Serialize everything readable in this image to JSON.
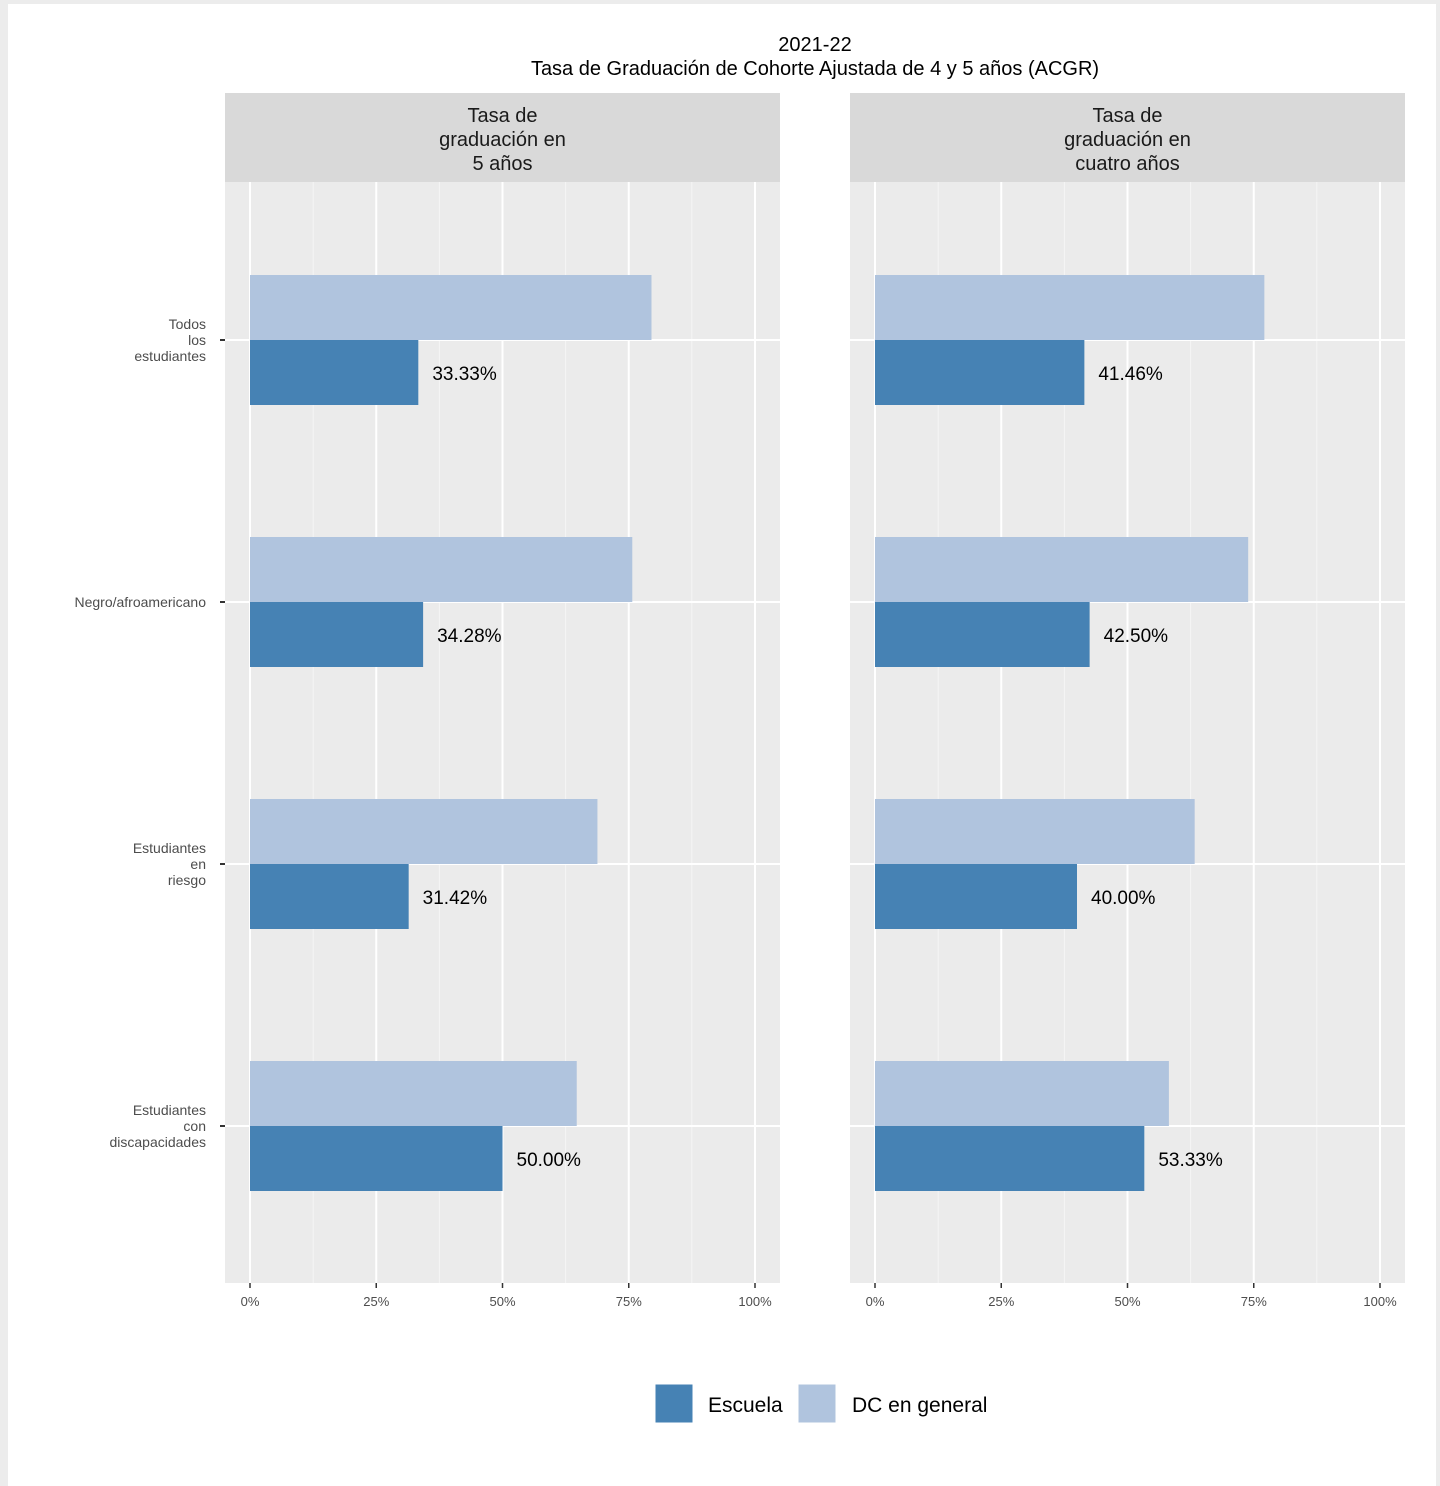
{
  "chart_data": {
    "type": "bar",
    "orientation": "horizontal",
    "title": "2021-22",
    "subtitle": "Tasa de Graduación de Cohorte Ajustada de 4 y 5 años (ACGR)",
    "categories": [
      [
        "Todos",
        "los",
        "estudiantes"
      ],
      [
        "Negro/afroamericano"
      ],
      [
        "Estudiantes",
        "en",
        "riesgo"
      ],
      [
        "Estudiantes",
        "con",
        "discapacidades"
      ]
    ],
    "xlim": [
      0,
      100
    ],
    "x_ticks": [
      "0%",
      "25%",
      "50%",
      "75%",
      "100%"
    ],
    "grid": true,
    "legend_position": "bottom",
    "legend": [
      {
        "name": "Escuela",
        "color": "#4682b4"
      },
      {
        "name": "DC en general",
        "color": "#b0c4de"
      }
    ],
    "facets": [
      {
        "title_lines": [
          "Tasa de",
          "graduación en",
          "5 años"
        ],
        "series": [
          {
            "name": "Escuela",
            "values": [
              33.33,
              34.28,
              31.42,
              50.0
            ],
            "labels": [
              "33.33%",
              "34.28%",
              "31.42%",
              "50.00%"
            ]
          },
          {
            "name": "DC en general",
            "values": [
              79.5,
              75.7,
              68.8,
              64.7
            ]
          }
        ]
      },
      {
        "title_lines": [
          "Tasa de",
          "graduación en",
          "cuatro años"
        ],
        "series": [
          {
            "name": "Escuela",
            "values": [
              41.46,
              42.5,
              40.0,
              53.33
            ],
            "labels": [
              "41.46%",
              "42.50%",
              "40.00%",
              "53.33%"
            ]
          },
          {
            "name": "DC en general",
            "values": [
              77.1,
              73.9,
              63.3,
              58.2
            ]
          }
        ]
      }
    ]
  }
}
